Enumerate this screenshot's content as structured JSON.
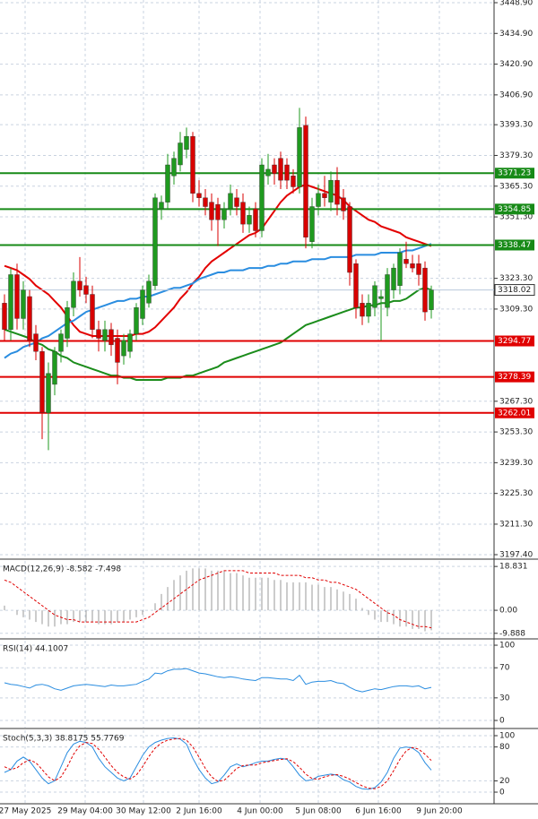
{
  "chart_data": [
    {
      "type": "candlestick",
      "x_labels": [
        "27 May 2025",
        "29 May 04:00",
        "30 May 12:00",
        "2 Jun 16:00",
        "4 Jun 00:00",
        "5 Jun 08:00",
        "6 Jun 16:00",
        "9 Jun 20:00"
      ],
      "ohlc": [
        [
          3312,
          3316,
          3295,
          3300
        ],
        [
          3300,
          3328,
          3295,
          3325
        ],
        [
          3325,
          3330,
          3300,
          3305
        ],
        [
          3305,
          3322,
          3300,
          3318
        ],
        [
          3315,
          3318,
          3292,
          3295
        ],
        [
          3298,
          3302,
          3286,
          3290
        ],
        [
          3290,
          3292,
          3250,
          3262
        ],
        [
          3262,
          3285,
          3245,
          3280
        ],
        [
          3275,
          3292,
          3270,
          3290
        ],
        [
          3290,
          3300,
          3285,
          3298
        ],
        [
          3296,
          3313,
          3292,
          3310
        ],
        [
          3310,
          3326,
          3306,
          3322
        ],
        [
          3322,
          3333,
          3315,
          3318
        ],
        [
          3320,
          3324,
          3312,
          3316
        ],
        [
          3316,
          3320,
          3296,
          3300
        ],
        [
          3300,
          3304,
          3290,
          3296
        ],
        [
          3295,
          3304,
          3290,
          3300
        ],
        [
          3300,
          3303,
          3288,
          3293
        ],
        [
          3296,
          3300,
          3275,
          3285
        ],
        [
          3288,
          3298,
          3284,
          3295
        ],
        [
          3290,
          3300,
          3287,
          3298
        ],
        [
          3298,
          3312,
          3295,
          3310
        ],
        [
          3305,
          3320,
          3302,
          3318
        ],
        [
          3312,
          3325,
          3310,
          3322
        ],
        [
          3320,
          3362,
          3318,
          3360
        ],
        [
          3355,
          3361,
          3350,
          3358
        ],
        [
          3358,
          3380,
          3355,
          3375
        ],
        [
          3370,
          3381,
          3366,
          3378
        ],
        [
          3375,
          3390,
          3372,
          3385
        ],
        [
          3382,
          3392,
          3378,
          3388
        ],
        [
          3388,
          3390,
          3358,
          3362
        ],
        [
          3362,
          3368,
          3356,
          3360
        ],
        [
          3360,
          3364,
          3352,
          3356
        ],
        [
          3358,
          3362,
          3345,
          3350
        ],
        [
          3357,
          3360,
          3338,
          3350
        ],
        [
          3350,
          3358,
          3346,
          3355
        ],
        [
          3355,
          3366,
          3352,
          3362
        ],
        [
          3360,
          3364,
          3352,
          3356
        ],
        [
          3358,
          3362,
          3344,
          3348
        ],
        [
          3348,
          3356,
          3344,
          3352
        ],
        [
          3355,
          3358,
          3342,
          3345
        ],
        [
          3345,
          3378,
          3342,
          3375
        ],
        [
          3370,
          3380,
          3366,
          3373
        ],
        [
          3375,
          3378,
          3366,
          3371
        ],
        [
          3378,
          3381,
          3364,
          3368
        ],
        [
          3375,
          3378,
          3364,
          3368
        ],
        [
          3370,
          3373,
          3362,
          3365
        ],
        [
          3365,
          3401,
          3362,
          3392
        ],
        [
          3393,
          3397,
          3337,
          3342
        ],
        [
          3340,
          3360,
          3337,
          3356
        ],
        [
          3356,
          3366,
          3352,
          3362
        ],
        [
          3362,
          3370,
          3356,
          3360
        ],
        [
          3358,
          3372,
          3354,
          3368
        ],
        [
          3368,
          3374,
          3352,
          3357
        ],
        [
          3360,
          3364,
          3350,
          3354
        ],
        [
          3356,
          3358,
          3320,
          3326
        ],
        [
          3330,
          3332,
          3305,
          3310
        ],
        [
          3312,
          3316,
          3302,
          3306
        ],
        [
          3306,
          3316,
          3303,
          3312
        ],
        [
          3310,
          3322,
          3306,
          3320
        ],
        [
          3314,
          3318,
          3295,
          3315
        ],
        [
          3310,
          3328,
          3306,
          3325
        ],
        [
          3318,
          3330,
          3314,
          3328
        ],
        [
          3320,
          3337,
          3316,
          3335
        ],
        [
          3332,
          3340,
          3328,
          3330
        ],
        [
          3330,
          3334,
          3326,
          3328
        ],
        [
          3330,
          3334,
          3320,
          3325
        ],
        [
          3328,
          3331,
          3304,
          3308
        ],
        [
          3309,
          3320,
          3305,
          3318
        ]
      ],
      "up_color": "#1f9a1f",
      "down_color": "#d80000",
      "lines": [
        {
          "color": "#e30000",
          "values": [
            3329,
            3328,
            3327,
            3325,
            3323,
            3320,
            3318,
            3316,
            3313,
            3310,
            3306,
            3302,
            3299,
            3298,
            3297,
            3297,
            3297,
            3297,
            3297,
            3297,
            3297,
            3298,
            3298,
            3299,
            3301,
            3304,
            3307,
            3310,
            3314,
            3317,
            3321,
            3324,
            3328,
            3331,
            3333,
            3335,
            3337,
            3339,
            3341,
            3343,
            3344,
            3346,
            3350,
            3354,
            3358,
            3361,
            3363,
            3365,
            3366,
            3365,
            3364,
            3363,
            3362,
            3361,
            3359,
            3356,
            3354,
            3352,
            3350,
            3349,
            3347,
            3346,
            3345,
            3344,
            3342,
            3341,
            3340,
            3339,
            3338
          ]
        },
        {
          "color": "#2a8de0",
          "values": [
            3287,
            3289,
            3290,
            3292,
            3293,
            3294,
            3296,
            3297,
            3299,
            3301,
            3303,
            3304,
            3306,
            3308,
            3309,
            3310,
            3311,
            3312,
            3313,
            3313,
            3314,
            3314,
            3315,
            3315,
            3316,
            3317,
            3318,
            3319,
            3319,
            3320,
            3321,
            3323,
            3324,
            3325,
            3326,
            3326,
            3327,
            3327,
            3327,
            3328,
            3328,
            3328,
            3329,
            3329,
            3330,
            3330,
            3331,
            3331,
            3331,
            3332,
            3332,
            3332,
            3333,
            3333,
            3333,
            3333,
            3334,
            3334,
            3334,
            3334,
            3335,
            3335,
            3335,
            3335,
            3336,
            3336,
            3337,
            3338,
            3339
          ]
        },
        {
          "color": "#1b8c1b",
          "values": [
            3300,
            3299,
            3298,
            3297,
            3296,
            3294,
            3293,
            3291,
            3290,
            3288,
            3287,
            3285,
            3284,
            3283,
            3282,
            3281,
            3280,
            3279,
            3279,
            3278,
            3278,
            3277,
            3277,
            3277,
            3277,
            3277,
            3278,
            3278,
            3278,
            3279,
            3279,
            3280,
            3281,
            3282,
            3283,
            3285,
            3286,
            3287,
            3288,
            3289,
            3290,
            3291,
            3292,
            3293,
            3294,
            3296,
            3298,
            3300,
            3302,
            3303,
            3304,
            3305,
            3306,
            3307,
            3308,
            3309,
            3310,
            3310,
            3311,
            3311,
            3312,
            3312,
            3313,
            3313,
            3314,
            3316,
            3318,
            3319,
            3318
          ]
        }
      ],
      "levels": [
        {
          "value": 3371.23,
          "color": "#178a17"
        },
        {
          "value": 3354.85,
          "color": "#178a17"
        },
        {
          "value": 3338.47,
          "color": "#178a17"
        },
        {
          "value": 3294.77,
          "color": "#e00000"
        },
        {
          "value": 3278.39,
          "color": "#e00000"
        },
        {
          "value": 3262.01,
          "color": "#e00000"
        }
      ],
      "last": 3318.02,
      "ylim": [
        3197.4,
        3448.9
      ],
      "yticks": [
        {
          "value": 3448.9,
          "label": "3448.90"
        },
        {
          "value": 3434.9,
          "label": "3434.90"
        },
        {
          "value": 3420.9,
          "label": "3420.90"
        },
        {
          "value": 3406.9,
          "label": "3406.90"
        },
        {
          "value": 3393.3,
          "label": "3393.30"
        },
        {
          "value": 3379.3,
          "label": "3379.30"
        },
        {
          "value": 3365.3,
          "label": "3365.30"
        },
        {
          "value": 3351.3,
          "label": "3351.30"
        },
        {
          "value": 3323.3,
          "label": "3323.30"
        },
        {
          "value": 3309.3,
          "label": "3309.30"
        },
        {
          "value": 3267.3,
          "label": "3267.30"
        },
        {
          "value": 3253.3,
          "label": "3253.30"
        },
        {
          "value": 3239.3,
          "label": "3239.30"
        },
        {
          "value": 3225.3,
          "label": "3225.30"
        },
        {
          "value": 3211.3,
          "label": "3211.30"
        },
        {
          "value": 3197.4,
          "label": "3197.40"
        }
      ],
      "grid": true
    },
    {
      "type": "macd",
      "title": "MACD(12,26,9) -8.582 -7.498",
      "series": [
        {
          "color": "#9a9a9a",
          "values": [
            2,
            0,
            -2,
            -3,
            -4,
            -5,
            -6,
            -7,
            -7,
            -6,
            -6,
            -5,
            -5,
            -5,
            -5,
            -6,
            -6,
            -6,
            -5,
            -5,
            -4,
            -3,
            -2,
            0,
            3,
            7,
            10,
            13,
            15,
            17,
            18,
            18,
            18,
            17,
            17,
            17,
            16,
            16,
            15,
            14,
            14,
            14,
            14,
            13,
            13,
            12,
            12,
            12,
            12,
            11,
            11,
            10,
            10,
            9,
            8,
            7,
            5,
            1,
            -2,
            -4,
            -5,
            -5,
            -6,
            -7,
            -7,
            -8,
            -8,
            -9,
            -8.6
          ]
        },
        {
          "color": "#e00000",
          "values": [
            13,
            12,
            10,
            8,
            6,
            4,
            2,
            0,
            -2,
            -3,
            -4,
            -4,
            -5,
            -5,
            -5,
            -5,
            -5,
            -5,
            -5,
            -5,
            -5,
            -5,
            -4,
            -3,
            -1,
            1,
            3,
            5,
            7,
            9,
            11,
            13,
            14,
            15,
            16,
            17,
            17,
            17,
            17,
            16,
            16,
            16,
            16,
            16,
            15,
            15,
            15,
            15,
            14,
            14,
            13,
            13,
            12,
            12,
            11,
            10,
            9,
            7,
            5,
            3,
            1,
            -1,
            -2,
            -4,
            -5,
            -6,
            -7,
            -7,
            -7.5
          ]
        }
      ],
      "ylim": [
        -11.9,
        21.2
      ],
      "yticks": [
        18.831,
        {
          "value": 0,
          "label": "0.00"
        },
        -9.888
      ]
    },
    {
      "type": "line",
      "title": "RSI(14) 44.1007",
      "series": [
        {
          "color": "#2a8de0",
          "values": [
            50,
            48,
            47,
            45,
            43,
            47,
            48,
            46,
            42,
            40,
            43,
            46,
            47,
            48,
            47,
            46,
            45,
            47,
            46,
            46,
            47,
            48,
            52,
            55,
            63,
            62,
            66,
            68,
            68,
            69,
            66,
            63,
            62,
            60,
            58,
            57,
            58,
            57,
            55,
            54,
            53,
            57,
            57,
            56,
            55,
            55,
            53,
            60,
            48,
            51,
            52,
            52,
            53,
            50,
            49,
            44,
            40,
            38,
            40,
            42,
            41,
            43,
            45,
            46,
            46,
            45,
            46,
            42,
            44
          ]
        }
      ],
      "ylim": [
        -9.5,
        106
      ],
      "yticks": [
        100,
        70,
        30,
        0
      ]
    },
    {
      "type": "line",
      "title": "Stoch(5,3,3) 38.8175 55.7769",
      "series": [
        {
          "color": "#2a8de0",
          "values": [
            35,
            40,
            55,
            62,
            55,
            40,
            25,
            15,
            20,
            45,
            70,
            85,
            90,
            88,
            80,
            60,
            45,
            35,
            25,
            20,
            25,
            45,
            65,
            80,
            88,
            92,
            95,
            96,
            94,
            85,
            60,
            40,
            25,
            15,
            18,
            30,
            45,
            50,
            45,
            48,
            52,
            55,
            55,
            58,
            60,
            58,
            45,
            30,
            20,
            22,
            28,
            30,
            32,
            30,
            22,
            18,
            10,
            6,
            5,
            8,
            18,
            35,
            60,
            78,
            80,
            78,
            70,
            52,
            39
          ]
        },
        {
          "color": "#e00000",
          "dashed": true,
          "values": [
            45,
            40,
            43,
            52,
            57,
            52,
            40,
            27,
            20,
            27,
            45,
            67,
            82,
            88,
            86,
            76,
            62,
            47,
            35,
            27,
            23,
            30,
            45,
            63,
            78,
            87,
            92,
            94,
            95,
            92,
            80,
            62,
            42,
            27,
            19,
            21,
            31,
            42,
            47,
            48,
            48,
            52,
            54,
            56,
            58,
            59,
            54,
            44,
            32,
            24,
            23,
            27,
            30,
            31,
            28,
            23,
            17,
            11,
            7,
            6,
            10,
            20,
            38,
            58,
            73,
            79,
            76,
            67,
            56
          ]
        }
      ],
      "ylim": [
        -19,
        109.5
      ],
      "yticks": [
        100,
        80,
        20,
        0
      ]
    }
  ]
}
